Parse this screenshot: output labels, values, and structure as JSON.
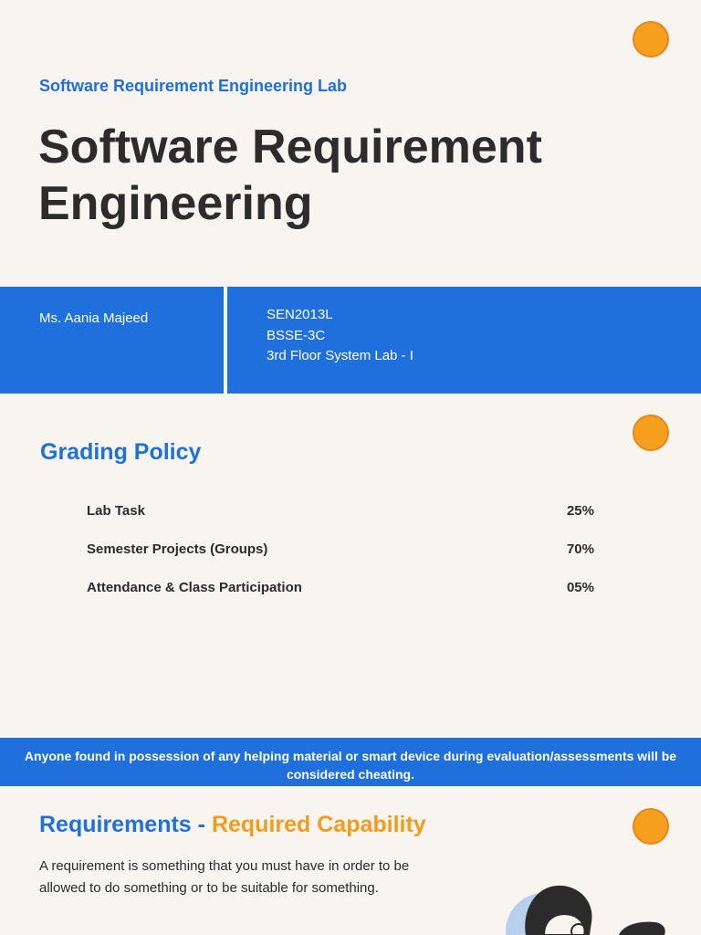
{
  "header": {
    "subtitle": "Software Requirement Engineering Lab",
    "title_line1": "Software Requirement",
    "title_line2": "Engineering"
  },
  "info_band": {
    "instructor": "Ms. Aania Majeed",
    "course_code": "SEN2013L",
    "section": "BSSE-3C",
    "location": "3rd Floor System Lab - I"
  },
  "grading": {
    "title": "Grading Policy",
    "rows": [
      {
        "label": "Lab Task",
        "value": "25%"
      },
      {
        "label": "Semester Projects (Groups)",
        "value": "70%"
      },
      {
        "label": "Attendance & Class Participation",
        "value": "05%"
      }
    ]
  },
  "notice": {
    "text": "Anyone found in possession of any helping material or smart device during evaluation/assessments will be considered cheating."
  },
  "requirements": {
    "title_part1": "Requirements - ",
    "title_part2": "Required Capability",
    "body": "A requirement is something that you must have in order to be allowed to do something or to be suitable for something."
  },
  "colors": {
    "accent_blue": "#1f6fdc",
    "accent_orange": "#f7a01f",
    "background": "#f8f5f0"
  },
  "icons": {
    "decor": "orange-circle-icon",
    "illustration": "person-illustration-icon"
  }
}
